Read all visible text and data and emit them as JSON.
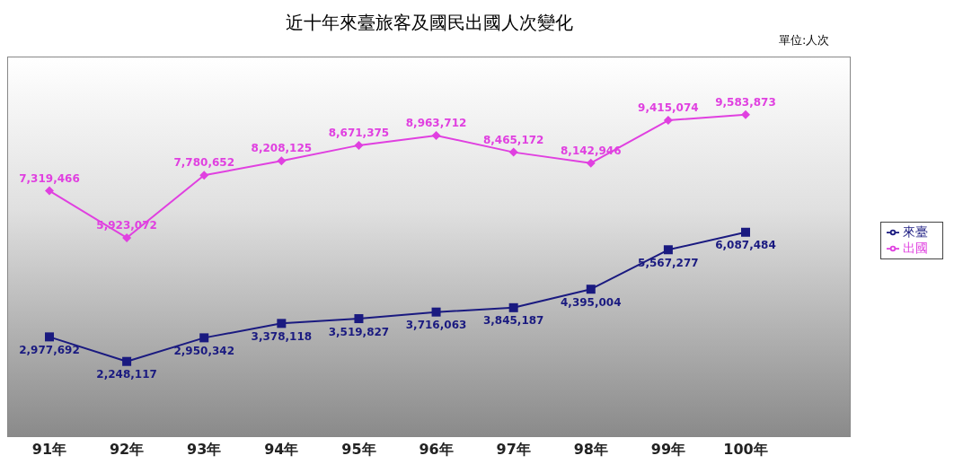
{
  "chart_data": {
    "type": "line",
    "title": "近十年來臺旅客及國民出國人次變化",
    "subtitle": "單位:人次",
    "categories": [
      "91年",
      "92年",
      "93年",
      "94年",
      "95年",
      "96年",
      "97年",
      "98年",
      "99年",
      "100年"
    ],
    "series": [
      {
        "name": "出國",
        "color": "#e040e0",
        "marker": "diamond",
        "values": [
          7319466,
          5923072,
          7780652,
          8208125,
          8671375,
          8963712,
          8465172,
          8142946,
          9415074,
          9583873
        ],
        "value_labels": [
          "7,319,466",
          "5,923,072",
          "7,780,652",
          "8,208,125",
          "8,671,375",
          "8,963,712",
          "8,465,172",
          "8,142,946",
          "9,415,074",
          "9,583,873"
        ]
      },
      {
        "name": "來臺",
        "color": "#1a1a80",
        "marker": "square",
        "values": [
          2977692,
          2248117,
          2950342,
          3378118,
          3519827,
          3716063,
          3845187,
          4395004,
          5567277,
          6087484
        ],
        "value_labels": [
          "2,977,692",
          "2,248,117",
          "2,950,342",
          "3,378,118",
          "3,519,827",
          "3,716,063",
          "3,845,187",
          "4,395,004",
          "5,567,277",
          "6,087,484"
        ]
      }
    ],
    "grid": false,
    "legend": "right",
    "tick_labels": "x"
  }
}
